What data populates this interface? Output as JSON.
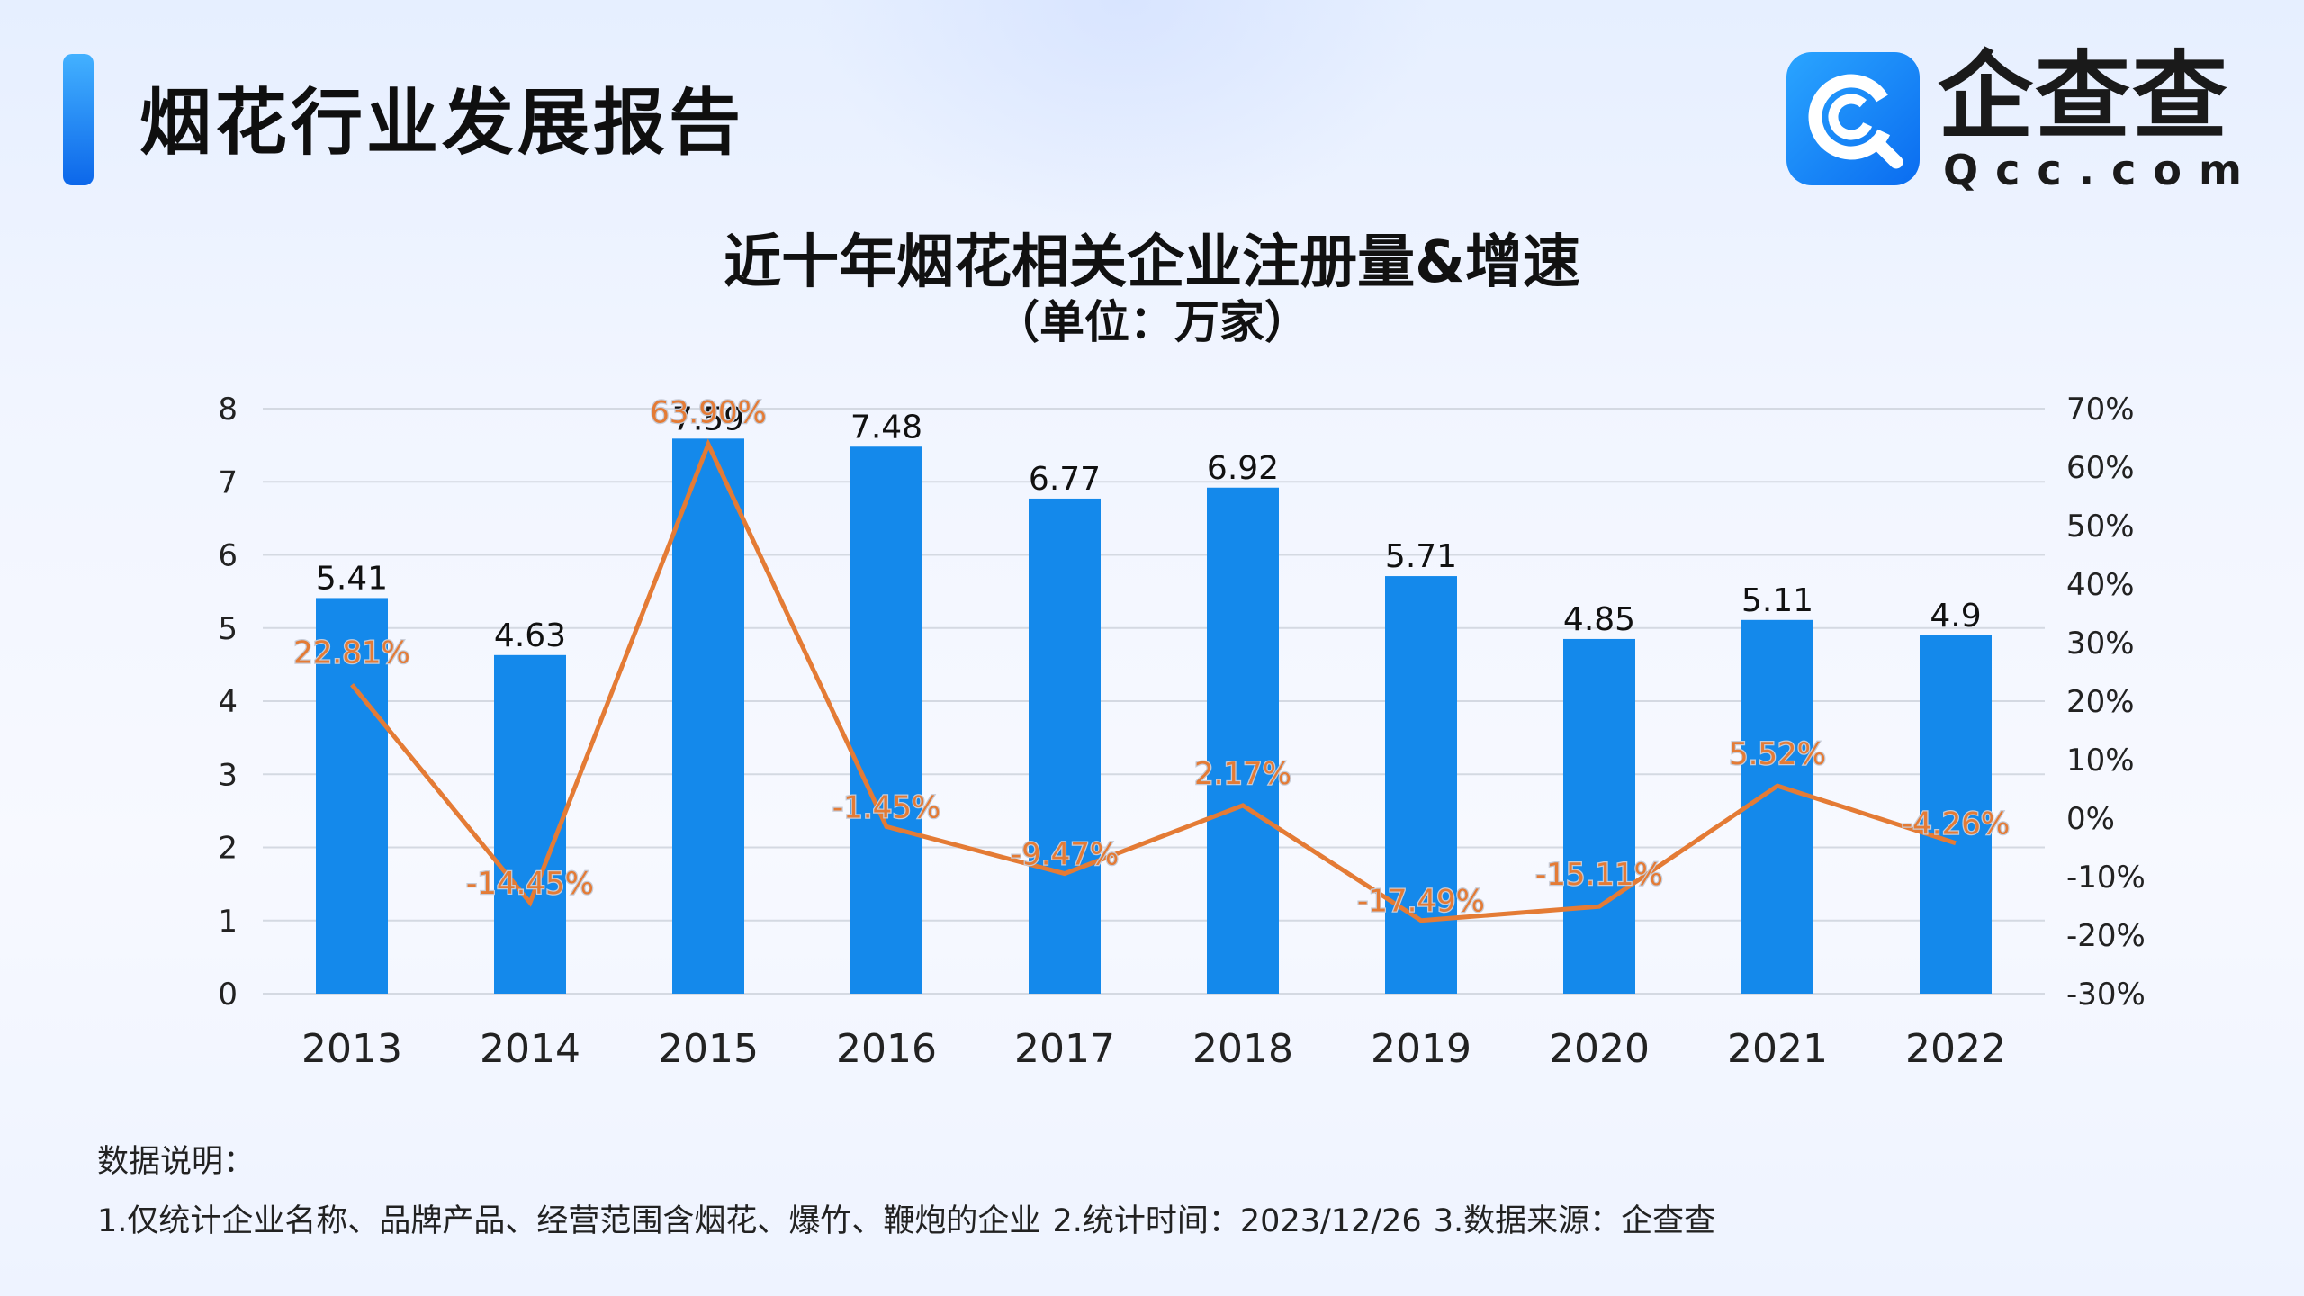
{
  "header": {
    "title": "烟花行业发展报告",
    "logo": {
      "name": "企查查",
      "domain": "Qcc.com",
      "icon": "qcc-logo-icon"
    }
  },
  "colors": {
    "bar": "#1489eb",
    "line": "#e47b35",
    "accent": "#1a7cf0"
  },
  "chart_data": {
    "type": "bar+line",
    "title": "近十年烟花相关企业注册量&增速",
    "subtitle": "（单位：万家）",
    "categories": [
      "2013",
      "2014",
      "2015",
      "2016",
      "2017",
      "2018",
      "2019",
      "2020",
      "2021",
      "2022"
    ],
    "series": [
      {
        "type": "bar",
        "axis": "left",
        "values": [
          5.41,
          4.63,
          7.59,
          7.48,
          6.77,
          6.92,
          5.71,
          4.85,
          5.11,
          4.9
        ],
        "labels": [
          "5.41",
          "4.63",
          "7.59",
          "7.48",
          "6.77",
          "6.92",
          "5.71",
          "4.85",
          "5.11",
          "4.9"
        ]
      },
      {
        "type": "line",
        "axis": "right",
        "values": [
          22.81,
          -14.45,
          63.9,
          -1.45,
          -9.47,
          2.17,
          -17.49,
          -15.11,
          5.52,
          -4.26
        ],
        "labels": [
          "22.81%",
          "-14.45%",
          "63.90%",
          "-1.45%",
          "-9.47%",
          "2.17%",
          "-17.49%",
          "-15.11%",
          "5.52%",
          "-4.26%"
        ]
      }
    ],
    "y_left": {
      "min": 0,
      "max": 8,
      "ticks": [
        "0",
        "1",
        "2",
        "3",
        "4",
        "5",
        "6",
        "7",
        "8"
      ]
    },
    "y_right": {
      "min": -30,
      "max": 70,
      "ticks": [
        "-30%",
        "-20%",
        "-10%",
        "0%",
        "10%",
        "20%",
        "30%",
        "40%",
        "50%",
        "60%",
        "70%"
      ]
    },
    "grid": true,
    "legend": "none"
  },
  "notes": {
    "heading": "数据说明：",
    "body": "1.仅统计企业名称、品牌产品、经营范围含烟花、爆竹、鞭炮的企业   2.统计时间：2023/12/26    3.数据来源：企查查"
  }
}
